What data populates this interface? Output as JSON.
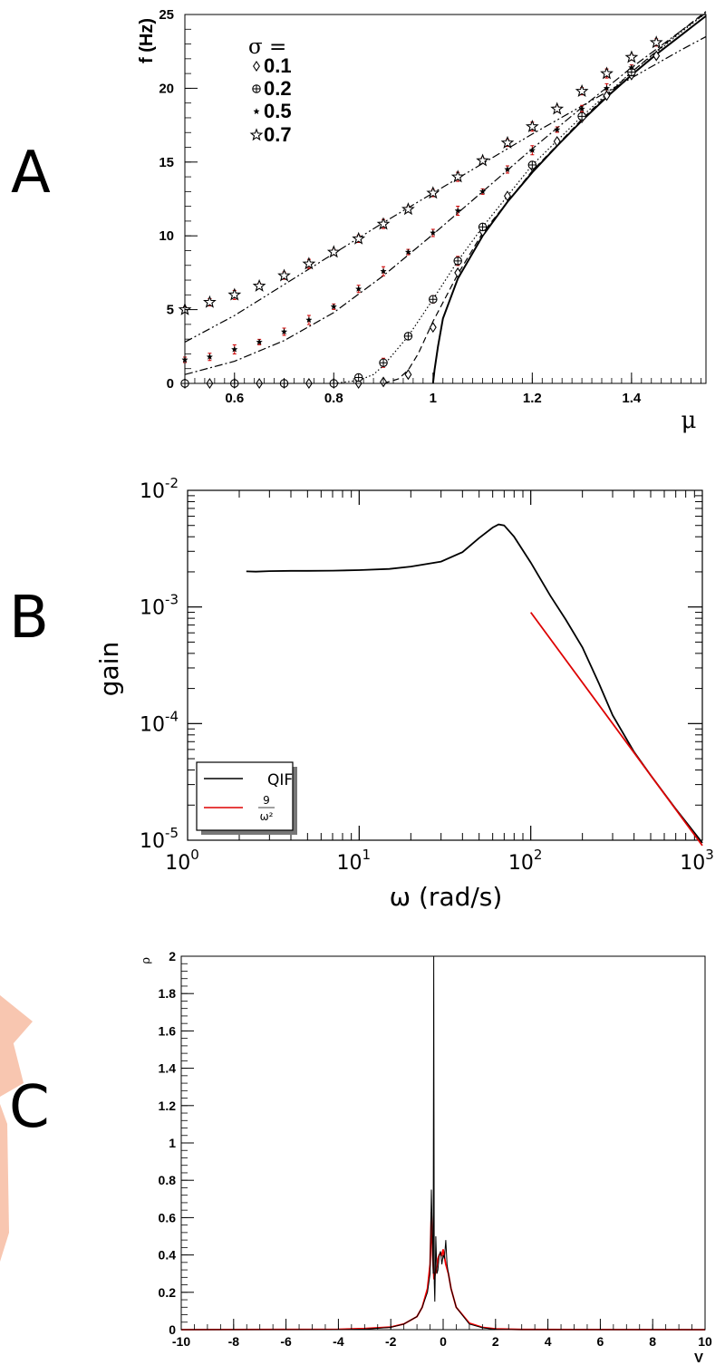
{
  "panels": {
    "a": "A",
    "b": "B",
    "c": "C"
  },
  "chart_data": [
    {
      "type": "scatter",
      "panel": "A",
      "xlabel": "μ",
      "ylabel": "f (Hz)",
      "xlim": [
        0.5,
        1.55
      ],
      "ylim": [
        0,
        25
      ],
      "xticks": [
        0.6,
        0.8,
        1,
        1.2,
        1.4
      ],
      "yticks": [
        0,
        5,
        10,
        15,
        20,
        25
      ],
      "grid": false,
      "legend": {
        "title": "σ =",
        "entries": [
          "0.1",
          "0.2",
          "0.5",
          "0.7"
        ],
        "placement": "top-left"
      },
      "series": [
        {
          "name": "0.1",
          "marker": "diamond",
          "x": [
            0.5,
            0.55,
            0.6,
            0.65,
            0.7,
            0.75,
            0.8,
            0.85,
            0.9,
            0.95,
            1.0,
            1.05,
            1.1,
            1.15,
            1.2,
            1.25,
            1.3,
            1.35,
            1.4,
            1.45
          ],
          "y": [
            0,
            0,
            0,
            0,
            0,
            0,
            0,
            0,
            0.1,
            0.6,
            3.8,
            7.5,
            10.3,
            12.7,
            14.7,
            16.4,
            18.0,
            19.5,
            20.9,
            22.2
          ]
        },
        {
          "name": "0.2",
          "marker": "cross-circle",
          "x": [
            0.5,
            0.6,
            0.7,
            0.8,
            0.85,
            0.9,
            0.95,
            1.0,
            1.05,
            1.1,
            1.2,
            1.3,
            1.4
          ],
          "y": [
            0,
            0,
            0,
            0,
            0.4,
            1.4,
            3.2,
            5.7,
            8.3,
            10.6,
            14.8,
            18.1,
            21.1
          ]
        },
        {
          "name": "0.5",
          "marker": "small-star",
          "x": [
            0.5,
            0.55,
            0.6,
            0.65,
            0.7,
            0.75,
            0.8,
            0.85,
            0.9,
            0.95,
            1.0,
            1.05,
            1.1,
            1.15,
            1.2,
            1.25,
            1.3,
            1.35,
            1.4
          ],
          "y": [
            1.6,
            1.8,
            2.3,
            2.8,
            3.5,
            4.3,
            5.2,
            6.4,
            7.6,
            8.9,
            10.2,
            11.7,
            13.0,
            14.5,
            15.8,
            17.2,
            18.6,
            20.0,
            21.4
          ]
        },
        {
          "name": "0.7",
          "marker": "star",
          "x": [
            0.5,
            0.55,
            0.6,
            0.65,
            0.7,
            0.75,
            0.8,
            0.85,
            0.9,
            0.95,
            1.0,
            1.05,
            1.1,
            1.15,
            1.2,
            1.25,
            1.3,
            1.35,
            1.4,
            1.45
          ],
          "y": [
            5.0,
            5.5,
            6.0,
            6.6,
            7.3,
            8.1,
            8.9,
            9.8,
            10.8,
            11.8,
            12.9,
            14.0,
            15.1,
            16.3,
            17.4,
            18.6,
            19.8,
            21.0,
            22.1,
            23.1
          ]
        }
      ],
      "theory_curves": [
        {
          "style": "solid",
          "x": [
            1.0,
            1.003,
            1.01,
            1.02,
            1.05,
            1.1,
            1.15,
            1.2,
            1.25,
            1.3,
            1.35,
            1.4,
            1.45,
            1.5,
            1.55
          ],
          "y": [
            0,
            0.9,
            2.5,
            4.4,
            7.1,
            10.0,
            12.3,
            14.3,
            16.1,
            17.8,
            19.4,
            20.9,
            22.3,
            23.6,
            24.9
          ]
        },
        {
          "style": "dashed",
          "x": [
            0.9,
            0.93,
            0.95,
            0.97,
            1.0,
            1.05,
            1.1,
            1.2,
            1.3,
            1.4,
            1.5,
            1.55
          ],
          "y": [
            0,
            0.3,
            0.9,
            2.0,
            4.2,
            7.4,
            10.2,
            14.4,
            17.9,
            21.1,
            23.9,
            25.2
          ]
        },
        {
          "style": "dotted",
          "x": [
            0.8,
            0.85,
            0.88,
            0.9,
            0.95,
            1.0,
            1.05,
            1.1,
            1.2,
            1.3,
            1.4,
            1.5,
            1.55
          ],
          "y": [
            0,
            0.2,
            0.6,
            1.2,
            3.2,
            5.7,
            8.3,
            10.6,
            14.8,
            18.1,
            21.1,
            23.8,
            25.1
          ]
        },
        {
          "style": "dashdot",
          "x": [
            0.5,
            0.6,
            0.7,
            0.8,
            0.9,
            1.0,
            1.1,
            1.2,
            1.3,
            1.4,
            1.5,
            1.55
          ],
          "y": [
            0.6,
            1.5,
            2.9,
            4.8,
            7.3,
            10.1,
            13.0,
            15.9,
            18.7,
            21.4,
            23.9,
            25.1
          ]
        },
        {
          "style": "dashdotdot",
          "x": [
            0.5,
            0.6,
            0.7,
            0.8,
            0.9,
            1.0,
            1.1,
            1.2,
            1.3,
            1.4,
            1.5,
            1.55
          ],
          "y": [
            2.8,
            4.6,
            6.7,
            8.8,
            10.9,
            12.9,
            14.9,
            16.9,
            18.8,
            20.7,
            22.6,
            23.5
          ]
        }
      ],
      "colors": {
        "data": "#000000",
        "error_bars": "#cc0000"
      }
    },
    {
      "type": "line",
      "panel": "B",
      "xlabel": "ω (rad/s)",
      "ylabel": "gain",
      "xscale": "log",
      "yscale": "log",
      "xlim": [
        1,
        1000
      ],
      "ylim": [
        1e-05,
        0.01
      ],
      "xticks": [
        {
          "value": 1,
          "base": "10",
          "exp": "0"
        },
        {
          "value": 10,
          "base": "10",
          "exp": "1"
        },
        {
          "value": 100,
          "base": "10",
          "exp": "2"
        },
        {
          "value": 1000,
          "base": "10",
          "exp": "3"
        }
      ],
      "yticks": [
        {
          "value": 1e-05,
          "base": "10",
          "exp": "-5"
        },
        {
          "value": 0.0001,
          "base": "10",
          "exp": "-4"
        },
        {
          "value": 0.001,
          "base": "10",
          "exp": "-3"
        },
        {
          "value": 0.01,
          "base": "10",
          "exp": "-2"
        }
      ],
      "legend": {
        "placement": "bottom-left",
        "entries": [
          {
            "label": "QIF"
          },
          {
            "num": "9",
            "den": "ω²"
          }
        ]
      },
      "series": [
        {
          "name": "QIF",
          "color": "#000000",
          "x": [
            2.2,
            2.5,
            3,
            4,
            5,
            7,
            10,
            15,
            20,
            30,
            40,
            50,
            60,
            65,
            70,
            80,
            100,
            130,
            160,
            200,
            250,
            300,
            400,
            500,
            700,
            1000
          ],
          "y": [
            0.00202,
            0.00201,
            0.00203,
            0.00204,
            0.00204,
            0.00205,
            0.00207,
            0.00212,
            0.00222,
            0.00245,
            0.00295,
            0.0039,
            0.0048,
            0.0051,
            0.005,
            0.004,
            0.0024,
            0.00125,
            0.00078,
            0.00045,
            0.00022,
            0.000118,
            5.7e-05,
            3.6e-05,
            1.85e-05,
            9.5e-06
          ]
        },
        {
          "name": "9/ω²",
          "color": "#dd0000",
          "x": [
            100,
            1000
          ],
          "y": [
            0.0009,
            9e-06
          ]
        }
      ]
    },
    {
      "type": "line",
      "panel": "C",
      "xlabel": "V",
      "ylabel": "ρ",
      "xlim": [
        -10,
        10
      ],
      "ylim": [
        0,
        2
      ],
      "xticks": [
        -10,
        -8,
        -6,
        -4,
        -2,
        0,
        2,
        4,
        6,
        8,
        10
      ],
      "yticks": [
        0,
        0.2,
        0.4,
        0.6,
        0.8,
        1,
        1.2,
        1.4,
        1.6,
        1.8,
        2
      ],
      "series": [
        {
          "name": "",
          "color": "#000000",
          "x": [
            -10,
            -4,
            -3,
            -2,
            -1.5,
            -1.0,
            -0.8,
            -0.6,
            -0.5,
            -0.45,
            -0.4,
            -0.38,
            -0.36,
            -0.34,
            -0.32,
            -0.3,
            -0.28,
            -0.26,
            -0.24,
            -0.2,
            -0.15,
            -0.1,
            -0.05,
            0.0,
            0.05,
            0.1,
            0.15,
            0.2,
            0.3,
            0.5,
            1.0,
            1.5,
            2,
            3,
            10
          ],
          "y": [
            0,
            0,
            0.003,
            0.012,
            0.03,
            0.07,
            0.12,
            0.2,
            0.3,
            0.75,
            0.42,
            0.3,
            2.0,
            0.25,
            0.15,
            0.3,
            0.5,
            0.4,
            0.3,
            0.32,
            0.4,
            0.42,
            0.35,
            0.4,
            0.38,
            0.48,
            0.35,
            0.3,
            0.22,
            0.12,
            0.03,
            0.01,
            0.002,
            0,
            0
          ]
        },
        {
          "name": "",
          "color": "#ff0000",
          "x": [
            -10,
            -4,
            -3,
            -2,
            -1.5,
            -1.0,
            -0.8,
            -0.6,
            -0.5,
            -0.45,
            -0.4,
            -0.35,
            -0.3,
            -0.25,
            -0.2,
            -0.15,
            -0.1,
            -0.05,
            0.0,
            0.05,
            0.1,
            0.2,
            0.3,
            0.5,
            1.0,
            1.5,
            2,
            3,
            10
          ],
          "y": [
            0,
            0.002,
            0.006,
            0.014,
            0.03,
            0.07,
            0.12,
            0.22,
            0.35,
            0.63,
            0.4,
            0.27,
            0.3,
            0.33,
            0.38,
            0.4,
            0.41,
            0.4,
            0.43,
            0.39,
            0.35,
            0.3,
            0.22,
            0.12,
            0.035,
            0.012,
            0.004,
            0.001,
            0
          ]
        }
      ]
    }
  ]
}
